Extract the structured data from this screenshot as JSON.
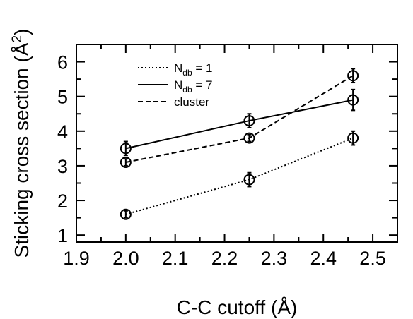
{
  "chart_data": {
    "type": "line",
    "xlabel": "C-C cutoff (Å)",
    "ylabel": "Sticking cross section (Å",
    "ylabel_sup": "2",
    "ylabel_close": ")",
    "xlim": [
      1.9,
      2.55
    ],
    "ylim": [
      0.8,
      6.5
    ],
    "x_ticks": [
      1.9,
      2.0,
      2.1,
      2.2,
      2.3,
      2.4,
      2.5
    ],
    "x_tick_labels": [
      "1.9",
      "2.0",
      "2.1",
      "2.2",
      "2.3",
      "2.4",
      "2.5"
    ],
    "y_ticks": [
      1,
      2,
      3,
      4,
      5,
      6
    ],
    "y_tick_labels": [
      "1",
      "2",
      "3",
      "4",
      "5",
      "6"
    ],
    "grid": false,
    "legend_position": "top-left",
    "series": [
      {
        "name": "N",
        "name_sub": "db",
        "name_tail": " = 1",
        "style": "dotted",
        "x": [
          2.0,
          2.25,
          2.46
        ],
        "y": [
          1.6,
          2.6,
          3.8
        ],
        "err": [
          0.1,
          0.2,
          0.2
        ]
      },
      {
        "name": "N",
        "name_sub": "db",
        "name_tail": " = 7",
        "style": "solid",
        "x": [
          2.0,
          2.25,
          2.46
        ],
        "y": [
          3.5,
          4.3,
          4.9
        ],
        "err": [
          0.2,
          0.2,
          0.3
        ]
      },
      {
        "name": "cluster",
        "name_sub": "",
        "name_tail": "",
        "style": "dashed",
        "x": [
          2.0,
          2.25,
          2.46
        ],
        "y": [
          3.1,
          3.8,
          5.6
        ],
        "err": [
          0.1,
          0.1,
          0.2
        ]
      }
    ]
  }
}
